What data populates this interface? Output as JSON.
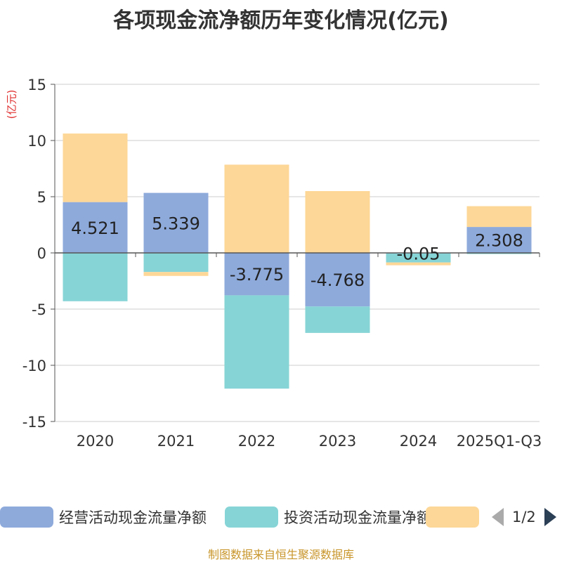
{
  "title": "各项现金流净额历年变化情况(亿元)",
  "unit_label": "(亿元)",
  "footer": "制图数据来自恒生聚源数据库",
  "legend": {
    "items": [
      {
        "name": "经营活动现金流量净额",
        "color": "#8eaadb"
      },
      {
        "name": "投资活动现金流量净额",
        "color": "#86d4d6"
      },
      {
        "name": "",
        "color": "#fdd797"
      }
    ],
    "page": "1/2"
  },
  "chart_data": {
    "type": "bar",
    "stacked": true,
    "title": "各项现金流净额历年变化情况(亿元)",
    "ylabel": "(亿元)",
    "categories": [
      "2020",
      "2021",
      "2022",
      "2023",
      "2024",
      "2025Q1-Q3"
    ],
    "ylim": [
      -15,
      15
    ],
    "yticks": [
      15,
      10,
      5,
      0,
      -5,
      -10,
      -15
    ],
    "series": [
      {
        "name": "经营活动现金流量净额",
        "color": "#8eaadb",
        "values": [
          4.521,
          5.339,
          -3.775,
          -4.768,
          -0.05,
          2.308
        ]
      },
      {
        "name": "投资活动现金流量净额",
        "color": "#86d4d6",
        "values": [
          -4.3,
          -1.7,
          -8.3,
          -2.35,
          -0.8,
          -0.1
        ]
      },
      {
        "name": "",
        "color": "#fdd797",
        "values": [
          6.1,
          -0.35,
          7.85,
          5.5,
          -0.25,
          1.85
        ]
      }
    ],
    "data_labels": [
      "4.521",
      "5.339",
      "-3.775",
      "-4.768",
      "-0.05",
      "2.308"
    ]
  }
}
